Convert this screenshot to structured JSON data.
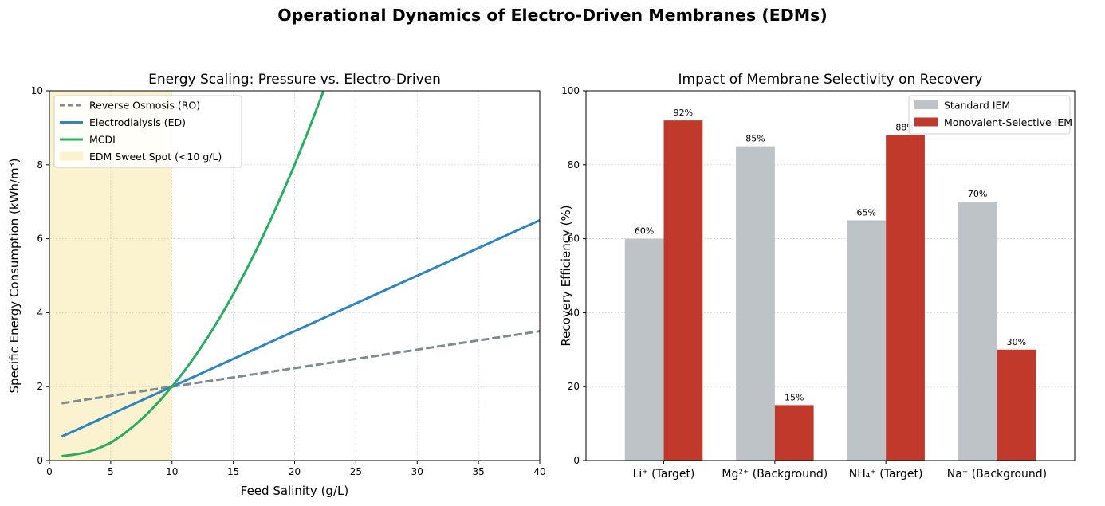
{
  "figure": {
    "suptitle": "Operational Dynamics of Electro-Driven Membranes (EDMs)"
  },
  "colors": {
    "ro": "#7f8c8d",
    "ed": "#2e86c1",
    "mcdi": "#27ae60",
    "sweet_spot": "#f7e9a8",
    "standard": "#bdc3c7",
    "selective": "#c0392b",
    "grid": "#c8c8c8"
  },
  "chart_data": [
    {
      "type": "line",
      "title": "Energy Scaling: Pressure vs. Electro-Driven",
      "xlabel": "Feed Salinity (g/L)",
      "ylabel": "Specific Energy Consumption (kWh/m³)",
      "xlim": [
        0,
        40
      ],
      "ylim": [
        0,
        10
      ],
      "xticks": [
        0,
        5,
        10,
        15,
        20,
        25,
        30,
        35,
        40
      ],
      "yticks": [
        0,
        2,
        4,
        6,
        8,
        10
      ],
      "grid": true,
      "legend_position": "top-left",
      "series": [
        {
          "name": "Reverse Osmosis (RO)",
          "style": "dashed",
          "x": [
            1,
            5,
            10,
            15,
            20,
            25,
            30,
            35,
            40
          ],
          "y": [
            1.55,
            1.75,
            2.0,
            2.25,
            2.5,
            2.75,
            3.0,
            3.25,
            3.5
          ]
        },
        {
          "name": "Electrodialysis (ED)",
          "style": "solid",
          "x": [
            1,
            5,
            10,
            15,
            20,
            25,
            30,
            35,
            40
          ],
          "y": [
            0.65,
            1.25,
            2.0,
            2.75,
            3.5,
            4.25,
            5.0,
            5.75,
            6.5
          ]
        },
        {
          "name": "MCDI",
          "style": "solid",
          "x": [
            1,
            2,
            3,
            4,
            5,
            6,
            7,
            8,
            9,
            10,
            11,
            12,
            13,
            14,
            15,
            16,
            17,
            18,
            19,
            20,
            21,
            22,
            23
          ],
          "y": [
            0.12,
            0.16,
            0.22,
            0.33,
            0.48,
            0.7,
            0.97,
            1.27,
            1.62,
            2.0,
            2.42,
            2.88,
            3.38,
            3.92,
            4.5,
            5.12,
            5.78,
            6.48,
            7.22,
            8.0,
            8.82,
            9.68,
            10.58
          ]
        }
      ],
      "shaded_region": {
        "name": "EDM Sweet Spot (<10 g/L)",
        "x_range": [
          0,
          10
        ]
      }
    },
    {
      "type": "bar",
      "title": "Impact of Membrane Selectivity on Recovery",
      "xlabel": "",
      "ylabel": "Recovery Efficiency (%)",
      "ylim": [
        0,
        100
      ],
      "yticks": [
        0,
        20,
        40,
        60,
        80,
        100
      ],
      "grid": true,
      "legend_position": "top-right",
      "categories": [
        "Li⁺ (Target)",
        "Mg²⁺ (Background)",
        "NH₄⁺ (Target)",
        "Na⁺ (Background)"
      ],
      "series": [
        {
          "name": "Standard IEM",
          "values": [
            60,
            85,
            65,
            70
          ],
          "labels": [
            "60%",
            "85%",
            "65%",
            "70%"
          ]
        },
        {
          "name": "Monovalent-Selective IEM",
          "values": [
            92,
            15,
            88,
            30
          ],
          "labels": [
            "92%",
            "15%",
            "88%",
            "30%"
          ]
        }
      ]
    }
  ]
}
